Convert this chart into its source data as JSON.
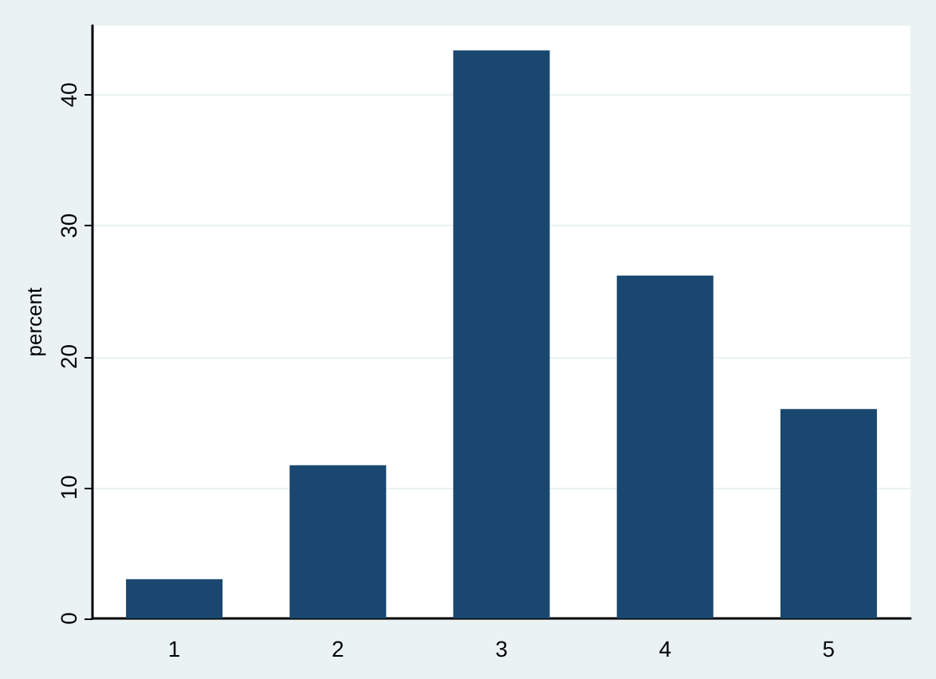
{
  "chart_data": {
    "type": "bar",
    "ylabel": "percent",
    "categories": [
      "1",
      "2",
      "3",
      "4",
      "5"
    ],
    "values": [
      3.0,
      11.7,
      43.4,
      26.2,
      16.0
    ],
    "color": "#1a476f",
    "ylim": [
      0,
      45.3
    ],
    "yticks": [
      0,
      10,
      20,
      30,
      40
    ],
    "grid": "y"
  }
}
